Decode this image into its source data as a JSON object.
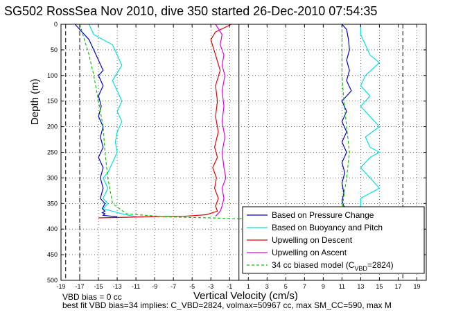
{
  "chart_data": {
    "type": "line",
    "title": "SG502 RossSea Nov 2010, dive 350 started 26-Dec-2010 07:54:35",
    "xlabel": "Vertical Velocity (cm/s)",
    "ylabel": "Depth (m)",
    "xlim": [
      -19,
      20
    ],
    "ylim": [
      0,
      500
    ],
    "y_reversed": true,
    "grid": true,
    "xticks": [
      "-19",
      "-17",
      "-15",
      "-13",
      "-11",
      "-9",
      "-7",
      "-5",
      "-3",
      "-1",
      "1",
      "3",
      "5",
      "7",
      "9",
      "11",
      "13",
      "15",
      "17",
      "19"
    ],
    "yticks": [
      "0",
      "50",
      "100",
      "150",
      "200",
      "250",
      "300",
      "350",
      "400",
      "450",
      "500"
    ],
    "reference_lines": [
      -18.5,
      -17,
      0,
      17.5
    ],
    "legend_position": "bottom-right",
    "legend": [
      "Based on Pressure Change",
      "Based on Buoyancy and Pitch",
      "Upwelling on Descent",
      "Upwelling on Ascent",
      "34 cc biased model (C",
      "VBD",
      "=2824)"
    ],
    "series": [
      {
        "name": "Based on Pressure Change",
        "color": "#0000c8",
        "segments": [
          {
            "x": [
              -17.5,
              -17,
              -16,
              -15.5,
              -15,
              -14.5,
              -15,
              -14.5,
              -15,
              -14.7,
              -15,
              -14.5,
              -14.8,
              -14.5,
              -15,
              -14.5,
              -14.8,
              -14.5,
              -14.8,
              -14.3,
              -14.6,
              -14.3,
              -14.6,
              -14.3,
              -14.5,
              -13
            ],
            "y": [
              0,
              10,
              30,
              50,
              70,
              90,
              100,
              120,
              140,
              160,
              180,
              200,
              220,
              240,
              260,
              280,
              300,
              320,
              340,
              350,
              360,
              365,
              368,
              370,
              373,
              376
            ]
          },
          {
            "x": [
              11,
              11.5,
              11.7,
              11.8,
              11.5,
              11.8,
              11.5,
              12,
              11,
              11.5,
              11,
              11.5,
              11,
              11.5,
              11,
              11.3,
              11,
              11.2,
              11,
              11.2,
              11.5
            ],
            "y": [
              0,
              10,
              30,
              50,
              70,
              90,
              110,
              130,
              150,
              170,
              190,
              210,
              230,
              250,
              270,
              290,
              310,
              330,
              345,
              355,
              360
            ]
          }
        ]
      },
      {
        "name": "Based on Buoyancy and Pitch",
        "color": "#00e0e0",
        "segments": [
          {
            "x": [
              -16,
              -15.5,
              -13.5,
              -12.5,
              -13.5,
              -13,
              -12.5,
              -13,
              -12.5,
              -13,
              -13.2,
              -13,
              -13.5,
              -14,
              -14.5,
              -14,
              -14.5,
              -14,
              -14.5,
              -13.5,
              -12.5,
              -11
            ],
            "y": [
              0,
              20,
              40,
              80,
              110,
              130,
              150,
              170,
              190,
              210,
              230,
              250,
              270,
              290,
              300,
              320,
              340,
              350,
              360,
              365,
              370,
              376
            ]
          },
          {
            "x": [
              13,
              13,
              13.5,
              14,
              15,
              13.5,
              13,
              14,
              13,
              14,
              15,
              13.5,
              14,
              15,
              14,
              13,
              14,
              15,
              14,
              13,
              13
            ],
            "y": [
              0,
              20,
              40,
              60,
              75,
              100,
              120,
              140,
              160,
              180,
              200,
              220,
              240,
              250,
              260,
              280,
              300,
              320,
              330,
              340,
              360
            ]
          }
        ]
      },
      {
        "name": "Upwelling on Descent",
        "color": "#e00000",
        "segments": [
          {
            "x": [
              -0.8,
              -2.5,
              -3,
              -2.5,
              -2,
              -2.5,
              -2.3,
              -2.5,
              -2.2,
              -2.6,
              -2.3,
              -2.8,
              -2.4,
              -2.6,
              -2.2,
              -2.5,
              -2.3,
              -3.5,
              -6,
              -10,
              -15
            ],
            "y": [
              0,
              15,
              30,
              60,
              90,
              120,
              150,
              180,
              210,
              240,
              260,
              280,
              300,
              320,
              340,
              355,
              365,
              372,
              375,
              376,
              378
            ]
          }
        ]
      },
      {
        "name": "Upwelling on Ascent",
        "color": "#e000e0",
        "segments": [
          {
            "x": [
              -2.5,
              -1.8,
              -2,
              -1.6,
              -1.8,
              -1.5,
              -1.8,
              -1.6,
              -1.8,
              -1.5,
              -1.8,
              -1.6,
              -1.4,
              -1.8,
              -1.6,
              -1.8,
              -2,
              -2.5
            ],
            "y": [
              0,
              20,
              40,
              60,
              80,
              100,
              130,
              160,
              190,
              220,
              250,
              280,
              300,
              320,
              340,
              355,
              365,
              375
            ]
          }
        ]
      },
      {
        "name": "34 cc biased model",
        "color": "#00c800",
        "dashed": true,
        "segments": [
          {
            "x": [
              -17,
              -16.5,
              -16,
              -15.5,
              -15,
              -14.5,
              -14.3,
              -14,
              -13.5,
              -12,
              -8,
              -3,
              0
            ],
            "y": [
              0,
              30,
              60,
              100,
              150,
              200,
              250,
              300,
              350,
              370,
              376,
              378,
              380
            ]
          },
          {
            "x": [
              0,
              4,
              8,
              11,
              11.5,
              11.8,
              11.5,
              11.2,
              11,
              11,
              11
            ],
            "y": [
              380,
              378,
              376,
              360,
              300,
              250,
              200,
              150,
              100,
              50,
              0
            ]
          }
        ]
      }
    ]
  },
  "notes": {
    "bias": "VBD bias = 0 cc",
    "fit": "best fit VBD bias=34 implies: C_VBD=2824, volmax=50967 cc, max SM_CC=590, max M"
  }
}
